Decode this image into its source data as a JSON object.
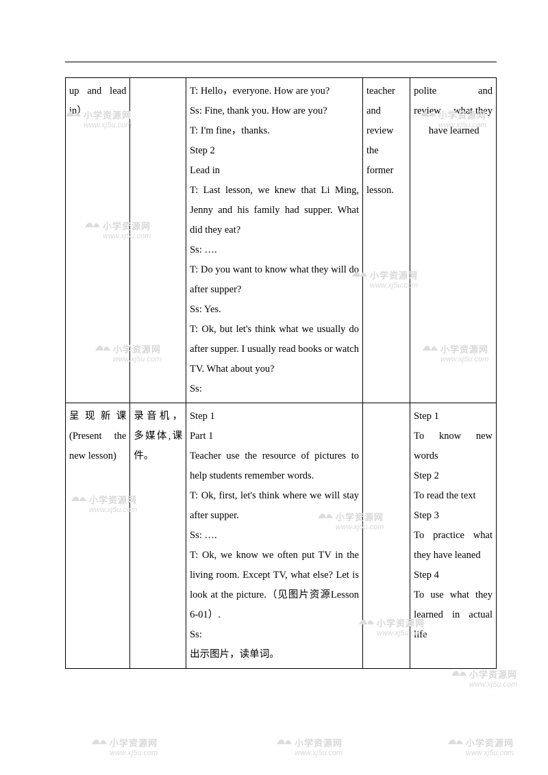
{
  "table": {
    "row1": {
      "col1": "up and lead in）",
      "col2": "",
      "col3": "T: Hello，everyone. How are you?\nSs: Fine, thank you. How are you?\nT: I'm fine，thanks.\nStep 2\nLead in\nT: Last lesson, we knew that Li Ming, Jenny and his family had supper. What did they eat?\nSs: ….\nT: Do you want to know what they will do after supper?\nSs: Yes.\nT: Ok, but let's think what we usually do after supper. I usually read books or watch TV. What about you?\nSs:",
      "col4": "teacher and review the former lesson.",
      "col5": "polite and review what they have learned"
    },
    "row2": {
      "col1": "呈现新课 (Present the new lesson)",
      "col2": "录音机，多媒体,课件。",
      "col3": "Step 1\nPart 1\nTeacher use the resource of pictures to help students remember words.\nT: Ok, first, let's think where we will stay after supper.\nSs: ….\nT: Ok, we know we often put TV in the living room. Except TV, what else? Let is look at the picture.（见图片资源Lesson 6-01）.\nSs:\n出示图片，读单词。",
      "col4": "",
      "col5": "Step 1\nTo know new words\nStep 2\nTo read the text\nStep 3\nTo practice what they have leaned\nStep 4\nTo use what they learned in actual life"
    }
  },
  "watermark": {
    "title": "小学资源网",
    "url": "www.xj5u.com"
  }
}
